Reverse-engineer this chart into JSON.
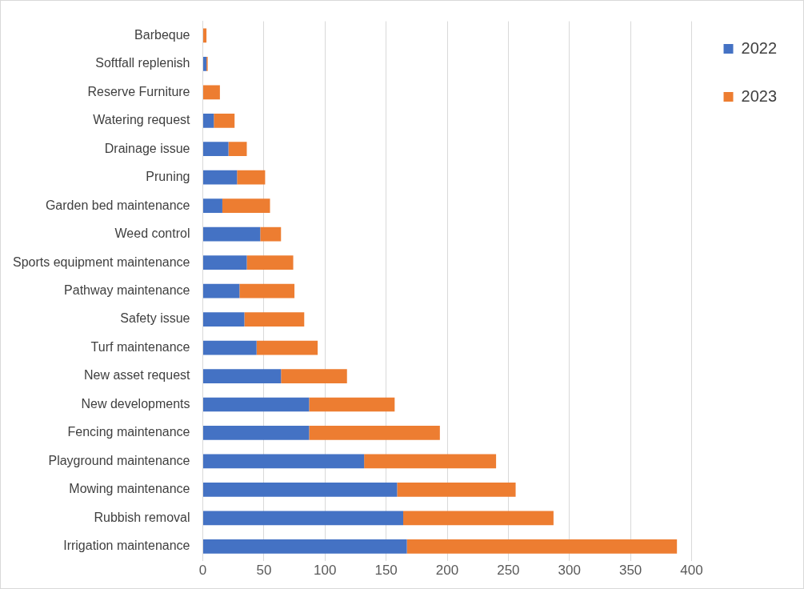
{
  "chart_data": {
    "type": "bar",
    "orientation": "horizontal",
    "stacked": true,
    "categories": [
      "Barbeque",
      "Softfall replenish",
      "Reserve Furniture",
      "Watering request",
      "Drainage issue",
      "Pruning",
      "Garden bed maintenance",
      "Weed control",
      "Sports equipment maintenance",
      "Pathway maintenance",
      "Safety issue",
      "Turf maintenance",
      "New asset request",
      "New developments",
      "Fencing maintenance",
      "Playground maintenance",
      "Mowing maintenance",
      "Rubbish removal",
      "Irrigation maintenance"
    ],
    "series": [
      {
        "name": "2022",
        "color": "#4472c4",
        "values": [
          0,
          3,
          0,
          9,
          21,
          28,
          16,
          47,
          36,
          30,
          34,
          44,
          64,
          87,
          87,
          132,
          159,
          164,
          167
        ]
      },
      {
        "name": "2023",
        "color": "#ed7d31",
        "values": [
          3,
          1,
          14,
          17,
          15,
          23,
          39,
          17,
          38,
          45,
          49,
          50,
          54,
          70,
          107,
          108,
          97,
          123,
          221
        ]
      }
    ],
    "xlim": [
      0,
      400
    ],
    "xticks": [
      0,
      50,
      100,
      150,
      200,
      250,
      300,
      350,
      400
    ],
    "grid": "x",
    "legend": "right"
  }
}
